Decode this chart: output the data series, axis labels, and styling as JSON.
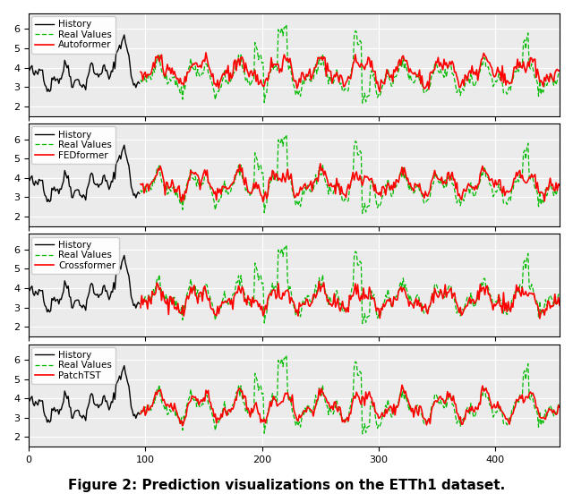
{
  "caption": "Figure 2: Prediction visualizations on the ETTh1 dataset.",
  "models": [
    "Autoformer",
    "FEDformer",
    "Crossformer",
    "PatchTST"
  ],
  "n_hist": 96,
  "n_pred": 360,
  "ylim": [
    1.5,
    6.8
  ],
  "yticks": [
    2,
    3,
    4,
    5,
    6
  ],
  "xticks": [
    0,
    100,
    200,
    300,
    400
  ],
  "hist_color": "#000000",
  "real_color": "#00bb00",
  "pred_color": "#ff0000",
  "bg_color": "#ebebeb",
  "seed_hist": 42,
  "figsize": [
    6.4,
    5.61
  ]
}
